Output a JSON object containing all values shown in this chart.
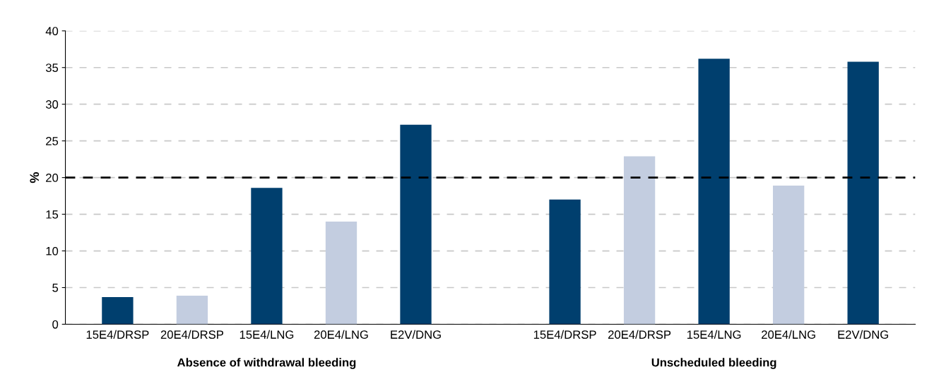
{
  "chart_data": {
    "type": "bar",
    "ylabel": "%",
    "categories": [
      "15E4/DRSP",
      "20E4/DRSP",
      "15E4/LNG",
      "20E4/LNG",
      "E2V/DNG",
      null,
      "15E4/DRSP",
      "20E4/DRSP",
      "15E4/LNG",
      "20E4/LNG",
      "E2V/DNG"
    ],
    "values": [
      3.7,
      3.9,
      18.6,
      14.0,
      27.2,
      null,
      17.0,
      22.9,
      36.2,
      18.9,
      35.8
    ],
    "colors": [
      "#003f6e",
      "#c3cde0",
      "#003f6e",
      "#c3cde0",
      "#003f6e",
      null,
      "#003f6e",
      "#c3cde0",
      "#003f6e",
      "#c3cde0",
      "#003f6e"
    ],
    "ylim": [
      0,
      40
    ],
    "yticks": [
      0,
      5,
      10,
      15,
      20,
      25,
      30,
      35,
      40
    ],
    "grid": "y",
    "ref_lines": [
      {
        "axis": "y",
        "value": 20,
        "color": "#000000",
        "line_style": "dashed"
      }
    ],
    "annotations": [
      "Absence of withdrawal bleeding",
      "Unscheduled bleeding"
    ]
  }
}
